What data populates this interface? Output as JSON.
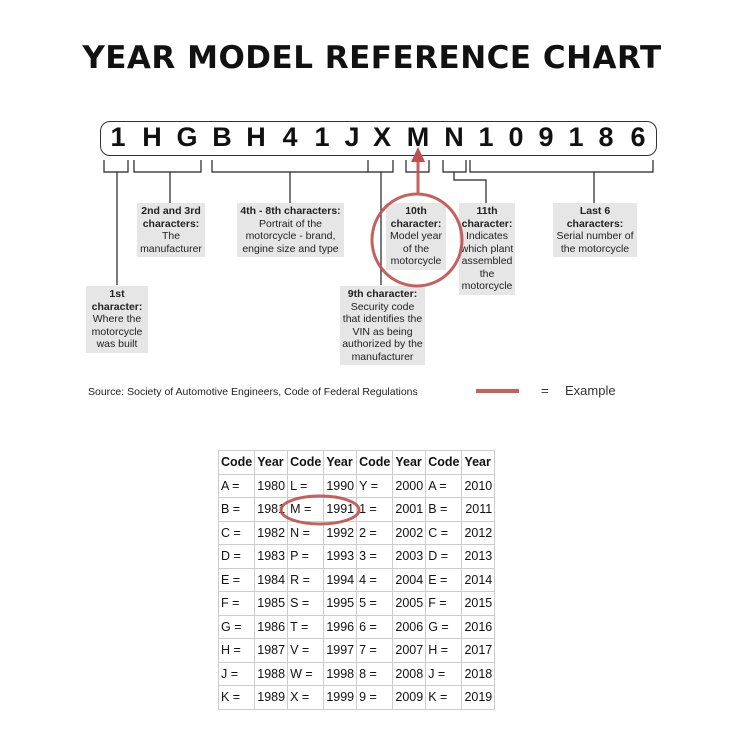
{
  "title": "YEAR MODEL REFERENCE CHART",
  "vin": [
    "1",
    "H",
    "G",
    "B",
    "H",
    "4",
    "1",
    "J",
    "X",
    "M",
    "N",
    "1",
    "0",
    "9",
    "1",
    "8",
    "6"
  ],
  "labels": {
    "first": {
      "head": "1st character:",
      "body": "Where the motorcycle was built"
    },
    "second_third": {
      "head": "2nd and 3rd characters:",
      "body": "The manufacturer"
    },
    "fourth_eighth": {
      "head": "4th - 8th characters:",
      "body": "Portrait of the motorcycle - brand, engine size and type"
    },
    "ninth": {
      "head": "9th character:",
      "body": "Security code that identifies the VIN as being authorized by the manufacturer"
    },
    "tenth": {
      "head": "10th character:",
      "body": "Model year of the motorcycle"
    },
    "eleventh": {
      "head": "11th character:",
      "body": "Indicates which plant assembled the motorcycle"
    },
    "last6": {
      "head": "Last 6 characters:",
      "body": "Serial number of the motorcycle"
    }
  },
  "source": "Source:  Society of Automotive Engineers, Code of Federal Regulations",
  "legend": {
    "equals": "=",
    "label": "Example",
    "color": "#c0504d"
  },
  "table": {
    "headers": [
      "Code",
      "Year",
      "Code",
      "Year",
      "Code",
      "Year",
      "Code",
      "Year"
    ],
    "rows": [
      [
        "A =",
        "1980",
        "L =",
        "1990",
        "Y =",
        "2000",
        "A =",
        "2010"
      ],
      [
        "B =",
        "1981",
        "M =",
        "1991",
        "1 =",
        "2001",
        "B =",
        "2011"
      ],
      [
        "C =",
        "1982",
        "N =",
        "1992",
        "2 =",
        "2002",
        "C =",
        "2012"
      ],
      [
        "D =",
        "1983",
        "P =",
        "1993",
        "3 =",
        "2003",
        "D =",
        "2013"
      ],
      [
        "E =",
        "1984",
        "R =",
        "1994",
        "4 =",
        "2004",
        "E =",
        "2014"
      ],
      [
        "F =",
        "1985",
        "S =",
        "1995",
        "5 =",
        "2005",
        "F =",
        "2015"
      ],
      [
        "G =",
        "1986",
        "T =",
        "1996",
        "6 =",
        "2006",
        "G =",
        "2016"
      ],
      [
        "H =",
        "1987",
        "V =",
        "1997",
        "7 =",
        "2007",
        "H =",
        "2017"
      ],
      [
        "J =",
        "1988",
        "W =",
        "1998",
        "8 =",
        "2008",
        "J =",
        "2018"
      ],
      [
        "K =",
        "1989",
        "X =",
        "1999",
        "9 =",
        "2009",
        "K =",
        "2019"
      ]
    ]
  }
}
